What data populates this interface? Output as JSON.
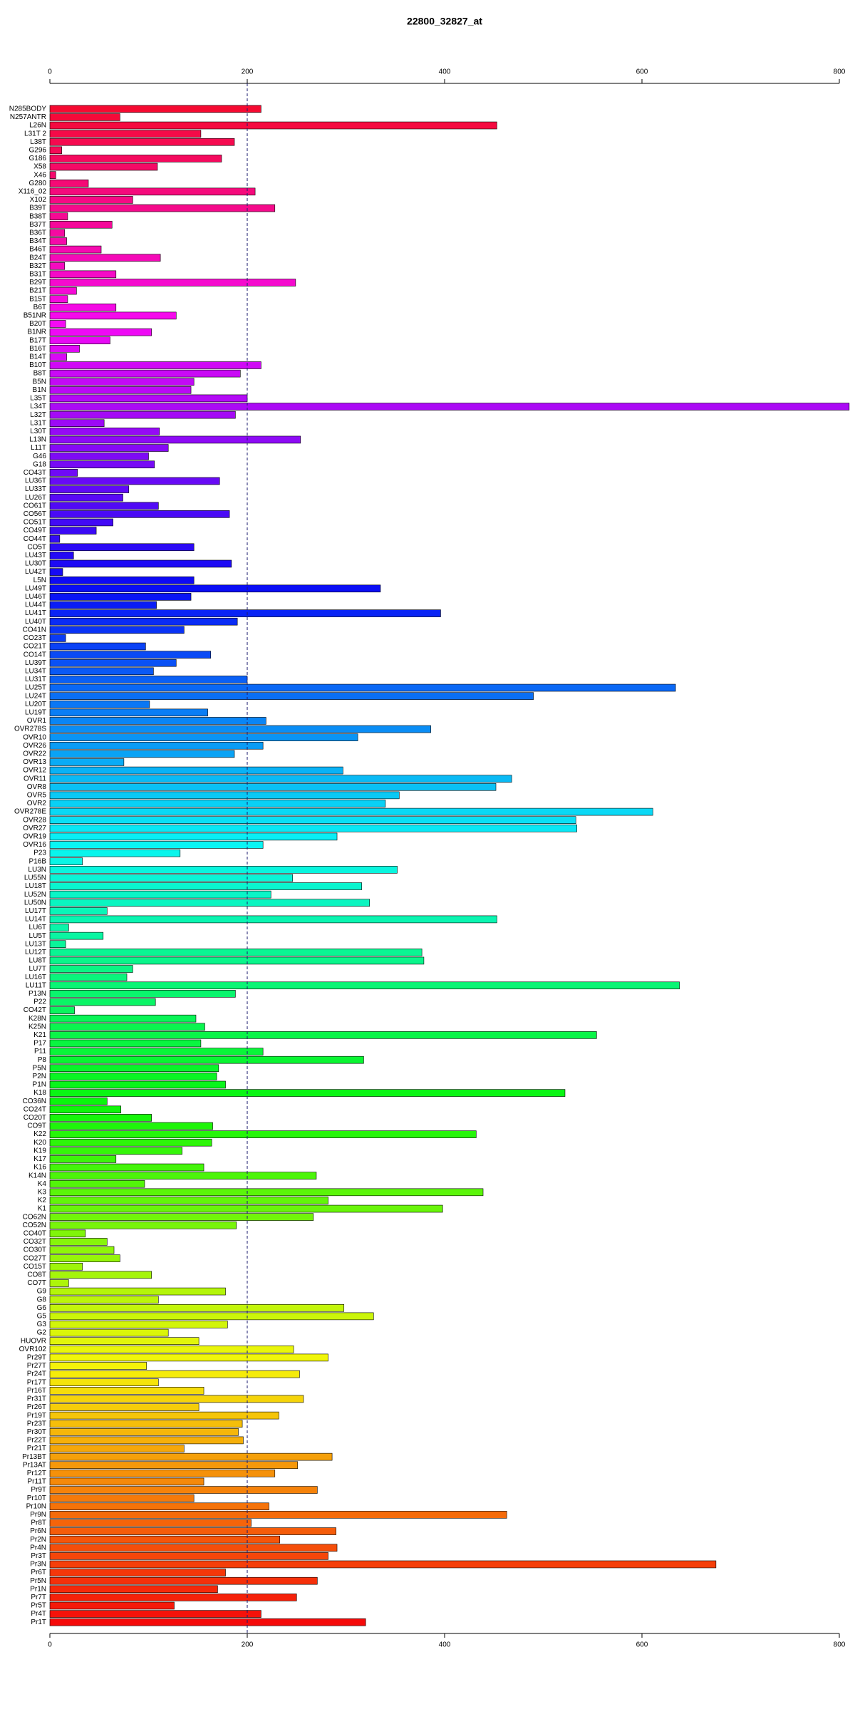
{
  "chart_data": {
    "type": "barh",
    "title": "22800_32827_at",
    "categories": [
      "N285BODY",
      "N257ANTR",
      "L26N",
      "L31T 2",
      "L38T",
      "G296",
      "G186",
      "X58",
      "X46",
      "G280",
      "X116_02",
      "X102",
      "B39T",
      "B38T",
      "B37T",
      "B36T",
      "B34T",
      "B46T",
      "B24T",
      "B32T",
      "B31T",
      "B29T",
      "B21T",
      "B15T",
      "B6T",
      "B51NR",
      "B20T",
      "B1NR",
      "B17T",
      "B16T",
      "B14T",
      "B10T",
      "B8T",
      "B5N",
      "B1N",
      "L35T",
      "L34T",
      "L32T",
      "L31T",
      "L30T",
      "L13N",
      "L11T",
      "G46",
      "G18",
      "CO43T",
      "LU36T",
      "LU33T",
      "LU26T",
      "CO61T",
      "CO56T",
      "CO51T",
      "CO49T",
      "CO44T",
      "CO5T",
      "LU43T",
      "LU30T",
      "LU42T",
      "L5N",
      "LU49T",
      "LU46T",
      "LU44T",
      "LU41T",
      "LU40T",
      "CO41N",
      "CO23T",
      "CO21T",
      "CO14T",
      "LU39T",
      "LU34T",
      "LU31T",
      "LU25T",
      "LU24T",
      "LU20T",
      "LU19T",
      "OVR1",
      "OVR278S",
      "OVR10",
      "OVR26",
      "OVR22",
      "OVR13",
      "OVR12",
      "OVR11",
      "OVR8",
      "OVR5",
      "OVR2",
      "OVR278E",
      "OVR28",
      "OVR27",
      "OVR19",
      "OVR16",
      "P23",
      "P16B",
      "LU3N",
      "LU55N",
      "LU18T",
      "LU52N",
      "LU50N",
      "LU17T",
      "LU14T",
      "LU6T",
      "LU5T",
      "LU13T",
      "LU12T",
      "LU8T",
      "LU7T",
      "LU16T",
      "LU11T",
      "P13N",
      "P22",
      "CO42T",
      "K28N",
      "K25N",
      "K21",
      "P17",
      "P11",
      "P8",
      "P5N",
      "P2N",
      "P1N",
      "K18",
      "CO36N",
      "CO24T",
      "CO20T",
      "CO9T",
      "K22",
      "K20",
      "K19",
      "K17",
      "K16",
      "K14N",
      "K4",
      "K3",
      "K2",
      "K1",
      "CO62N",
      "CO52N",
      "CO40T",
      "CO32T",
      "CO30T",
      "CO27T",
      "CO15T",
      "CO8T",
      "CO7T",
      "G9",
      "G8",
      "G6",
      "G5",
      "G3",
      "G2",
      "HUOVR",
      "OVR102",
      "Pr29T",
      "Pr27T",
      "Pr24T",
      "Pr17T",
      "Pr16T",
      "Pr31T",
      "Pr26T",
      "Pr19T",
      "Pr23T",
      "Pr30T",
      "Pr22T",
      "Pr21T",
      "Pr13BT",
      "Pr13AT",
      "Pr12T",
      "Pr11T",
      "Pr9T",
      "Pr10T",
      "Pr10N",
      "Pr9N",
      "Pr8T",
      "Pr6N",
      "Pr2N",
      "Pr4N",
      "Pr3T",
      "Pr3N",
      "Pr6T",
      "Pr5N",
      "Pr1N",
      "Pr7T",
      "Pr5T",
      "Pr4T",
      "Pr1T"
    ],
    "values": [
      214,
      71,
      453,
      153,
      187,
      12,
      174,
      109,
      6,
      39,
      208,
      84,
      228,
      18,
      63,
      15,
      17,
      52,
      112,
      15,
      67,
      249,
      27,
      18,
      67,
      128,
      16,
      103,
      61,
      30,
      17,
      214,
      193,
      146,
      143,
      200,
      810,
      188,
      55,
      111,
      254,
      120,
      100,
      106,
      28,
      172,
      80,
      74,
      110,
      182,
      64,
      47,
      10,
      146,
      24,
      184,
      13,
      146,
      335,
      143,
      108,
      396,
      190,
      136,
      16,
      97,
      163,
      128,
      105,
      200,
      634,
      490,
      101,
      160,
      219,
      386,
      312,
      216,
      187,
      75,
      297,
      468,
      452,
      354,
      340,
      611,
      533,
      534,
      291,
      216,
      132,
      33,
      352,
      246,
      316,
      224,
      324,
      58,
      453,
      19,
      54,
      16,
      377,
      379,
      84,
      78,
      638,
      188,
      107,
      25,
      148,
      157,
      554,
      153,
      216,
      318,
      171,
      169,
      178,
      522,
      58,
      72,
      103,
      165,
      432,
      164,
      134,
      67,
      156,
      270,
      96,
      439,
      282,
      398,
      267,
      189,
      36,
      58,
      65,
      71,
      33,
      103,
      19,
      178,
      110,
      298,
      328,
      180,
      120,
      151,
      247,
      282,
      98,
      253,
      110,
      156,
      257,
      151,
      232,
      195,
      191,
      196,
      136,
      286,
      251,
      228,
      156,
      271,
      146,
      222,
      463,
      204,
      290,
      233,
      291,
      282,
      675,
      178,
      271,
      170,
      250,
      126,
      214,
      320
    ],
    "color_hues": [
      350,
      0
    ],
    "xlim": [
      0,
      800
    ],
    "xticks": [
      0,
      200,
      400,
      600,
      800
    ],
    "reference_line": 200
  }
}
